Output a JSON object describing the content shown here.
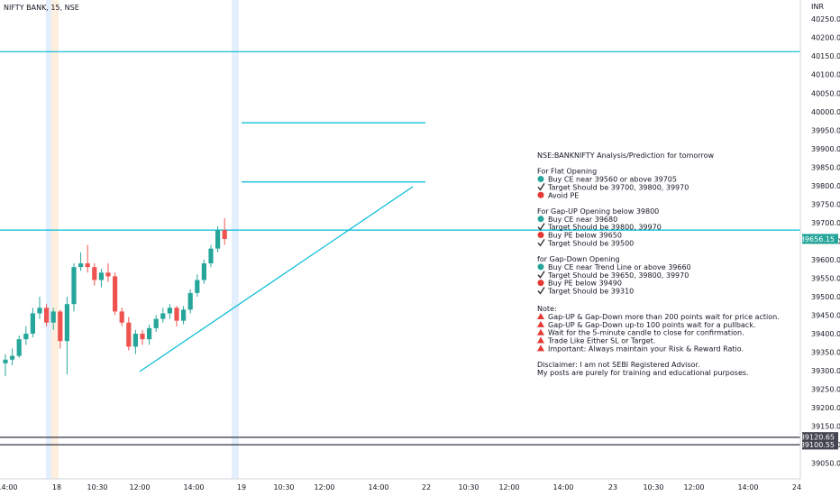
{
  "header": {
    "symbol": "NIFTY BANK, 15, NSE",
    "currency": "INR"
  },
  "price_axis": {
    "ticks": [
      "40250.00",
      "40200.00",
      "40150.00",
      "40100.00",
      "40050.00",
      "40000.00",
      "39950.00",
      "39900.00",
      "39850.00",
      "39800.00",
      "39750.00",
      "39700.00",
      "39650.00",
      "39600.00",
      "39550.00",
      "39500.00",
      "39450.00",
      "39400.00",
      "39350.00",
      "39300.00",
      "39250.00",
      "39200.00",
      "39150.00",
      "39100.00",
      "39050.00"
    ]
  },
  "time_axis": {
    "ticks": [
      "14:00",
      "18",
      "10:30",
      "12:00",
      "14:00",
      "19",
      "10:30",
      "12:00",
      "14:00",
      "22",
      "10:30",
      "12:00",
      "14:00",
      "23",
      "10:30",
      "12:00",
      "14:00",
      "24"
    ]
  },
  "current_price": {
    "label": "39656.15",
    "value": 39656.15,
    "color": "#26a69a"
  },
  "level_tags": [
    {
      "label": "39120.65",
      "value": 39120.65,
      "color": "#434651"
    },
    {
      "label": "39100.55",
      "value": 39100.55,
      "color": "#434651"
    }
  ],
  "analysis": {
    "title": "NSE:BANKNIFTY Analysis/Prediction for tomorrow",
    "sections": [
      {
        "heading": "For Flat Opening",
        "items": [
          {
            "icon": "green-circle-icon",
            "text": "Buy CE near 39560 or above 39705"
          },
          {
            "icon": "check-icon",
            "text": "Target Should be 39700, 39800, 39970"
          },
          {
            "icon": "red-circle-icon",
            "text": "Avoid PE"
          }
        ]
      },
      {
        "heading": "For Gap-UP Opening below 39800",
        "items": [
          {
            "icon": "green-circle-icon",
            "text": "Buy CE near 39680"
          },
          {
            "icon": "check-icon",
            "text": "Target Should be 39800, 39970"
          },
          {
            "icon": "red-circle-icon",
            "text": "Buy PE below 39650"
          },
          {
            "icon": "check-icon",
            "text": "Target Should be 39500"
          }
        ]
      },
      {
        "heading": "for Gap-Down Opening",
        "items": [
          {
            "icon": "green-circle-icon",
            "text": "Buy CE near Trend Line or above 39660"
          },
          {
            "icon": "check-icon",
            "text": "Target Should be 39650, 39800, 39970"
          },
          {
            "icon": "red-circle-icon",
            "text": "Buy PE below 39490"
          },
          {
            "icon": "check-icon",
            "text": "Target Should be 39310"
          }
        ]
      }
    ],
    "note_heading": "Note:",
    "notes": [
      "Gap-UP & Gap-Down more than 200 points wait for price action.",
      "Gap-UP & Gap-Down up-to 100 points wait for a pullback.",
      "Wait for the 5-minute candle to close for confirmation.",
      "Trade Like Either SL or Target.",
      "Important: Always maintain your Risk & Reward Ratio."
    ],
    "disclaimer": [
      "Disclaimer: I am not SEBI Registered Advisor.",
      "My posts are purely for training and educational purposes."
    ]
  },
  "colors": {
    "up": "#26a69a",
    "down": "#ef5350",
    "line": "#00bcd4",
    "level": "#434651",
    "highlight": "#e3effd",
    "highlight_orange": "#fdeedd"
  },
  "chart_data": {
    "type": "candlestick",
    "symbol": "NIFTY BANK, 15, NSE",
    "ylim": [
      39037,
      40287
    ],
    "candles": [
      {
        "o": 39320,
        "h": 39345,
        "l": 39285,
        "c": 39330
      },
      {
        "o": 39330,
        "h": 39360,
        "l": 39315,
        "c": 39340
      },
      {
        "o": 39340,
        "h": 39395,
        "l": 39335,
        "c": 39385
      },
      {
        "o": 39385,
        "h": 39420,
        "l": 39370,
        "c": 39400
      },
      {
        "o": 39400,
        "h": 39470,
        "l": 39390,
        "c": 39455
      },
      {
        "o": 39455,
        "h": 39500,
        "l": 39440,
        "c": 39470
      },
      {
        "o": 39470,
        "h": 39480,
        "l": 39420,
        "c": 39430
      },
      {
        "o": 39430,
        "h": 39470,
        "l": 39410,
        "c": 39460
      },
      {
        "o": 39460,
        "h": 39465,
        "l": 39360,
        "c": 39380
      },
      {
        "o": 39380,
        "h": 39500,
        "l": 39290,
        "c": 39480
      },
      {
        "o": 39480,
        "h": 39590,
        "l": 39460,
        "c": 39580
      },
      {
        "o": 39580,
        "h": 39620,
        "l": 39570,
        "c": 39590
      },
      {
        "o": 39590,
        "h": 39640,
        "l": 39565,
        "c": 39580
      },
      {
        "o": 39580,
        "h": 39590,
        "l": 39530,
        "c": 39545
      },
      {
        "o": 39545,
        "h": 39575,
        "l": 39525,
        "c": 39565
      },
      {
        "o": 39565,
        "h": 39590,
        "l": 39540,
        "c": 39555
      },
      {
        "o": 39555,
        "h": 39565,
        "l": 39450,
        "c": 39460
      },
      {
        "o": 39460,
        "h": 39470,
        "l": 39420,
        "c": 39430
      },
      {
        "o": 39430,
        "h": 39445,
        "l": 39355,
        "c": 39365
      },
      {
        "o": 39365,
        "h": 39410,
        "l": 39345,
        "c": 39400
      },
      {
        "o": 39400,
        "h": 39410,
        "l": 39370,
        "c": 39385
      },
      {
        "o": 39385,
        "h": 39425,
        "l": 39370,
        "c": 39415
      },
      {
        "o": 39415,
        "h": 39450,
        "l": 39405,
        "c": 39440
      },
      {
        "o": 39440,
        "h": 39470,
        "l": 39430,
        "c": 39455
      },
      {
        "o": 39455,
        "h": 39480,
        "l": 39440,
        "c": 39470
      },
      {
        "o": 39470,
        "h": 39475,
        "l": 39420,
        "c": 39435
      },
      {
        "o": 39435,
        "h": 39475,
        "l": 39425,
        "c": 39465
      },
      {
        "o": 39465,
        "h": 39520,
        "l": 39455,
        "c": 39510
      },
      {
        "o": 39510,
        "h": 39560,
        "l": 39500,
        "c": 39545
      },
      {
        "o": 39545,
        "h": 39600,
        "l": 39535,
        "c": 39590
      },
      {
        "o": 39590,
        "h": 39640,
        "l": 39580,
        "c": 39630
      },
      {
        "o": 39630,
        "h": 39690,
        "l": 39620,
        "c": 39680
      },
      {
        "o": 39680,
        "h": 39712,
        "l": 39640,
        "c": 39656
      }
    ],
    "horizontal_levels": [
      40162,
      39970,
      39810,
      39680,
      39120,
      39100
    ],
    "trend_line": [
      [
        39310,
        39810
      ]
    ]
  }
}
